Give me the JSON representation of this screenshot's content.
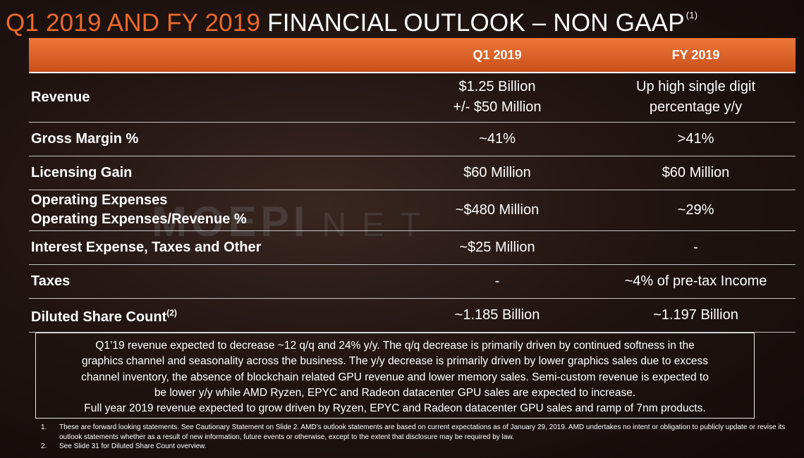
{
  "title": {
    "orange_part": "Q1 2019 AND FY 2019",
    "white_part": "FINANCIAL OUTLOOK – NON GAAP",
    "footnote_ref": "(1)"
  },
  "watermark": {
    "bold": "MOEPI",
    "light": "NET"
  },
  "table": {
    "headers": [
      "",
      "Q1 2019",
      "FY 2019"
    ],
    "rows": [
      {
        "label": [
          "Revenue"
        ],
        "q1": [
          "$1.25 Billion",
          "+/- $50 Million"
        ],
        "fy": [
          "Up high single digit",
          "percentage y/y"
        ]
      },
      {
        "label": [
          "Gross Margin %"
        ],
        "q1": [
          "~41%"
        ],
        "fy": [
          ">41%"
        ]
      },
      {
        "label": [
          "Licensing Gain"
        ],
        "q1": [
          "$60 Million"
        ],
        "fy": [
          "$60 Million"
        ]
      },
      {
        "label": [
          "Operating Expenses",
          "Operating Expenses/Revenue %"
        ],
        "q1": [
          "~$480 Million"
        ],
        "fy": [
          "~29%"
        ]
      },
      {
        "label": [
          "Interest Expense, Taxes and Other"
        ],
        "q1": [
          "~$25 Million"
        ],
        "fy": [
          "-"
        ]
      },
      {
        "label": [
          "Taxes"
        ],
        "q1": [
          "-"
        ],
        "fy": [
          "~4% of pre-tax Income"
        ]
      },
      {
        "label": [
          "Diluted Share Count"
        ],
        "label_sup": "(2)",
        "q1": [
          "~1.185 Billion"
        ],
        "fy": [
          "~1.197 Billion"
        ]
      }
    ]
  },
  "note_lines": [
    "Q1’19 revenue expected to decrease ~12 q/q and 24% y/y.  The q/q decrease is primarily driven by continued softness in the",
    "graphics channel and seasonality across the business.  The y/y decrease is primarily driven by lower graphics sales due to excess",
    "channel inventory, the absence of blockchain related GPU revenue and lower memory sales.  Semi-custom revenue is expected to",
    "be lower y/y while AMD Ryzen, EPYC and Radeon datacenter GPU sales are expected to increase.",
    "Full year 2019 revenue expected to grow driven by Ryzen, EPYC and Radeon datacenter GPU sales and ramp of 7nm products."
  ],
  "footnotes": [
    {
      "num": "1.",
      "text": "These are forward looking statements.  See Cautionary Statement on Slide 2. AMD’s outlook statements are based on current expectations as of January 29, 2019.  AMD undertakes no intent or obligation to publicly update or revise its outlook statements whether as a result of new information, future events or otherwise, except to the extent that disclosure may be required by law."
    },
    {
      "num": "2.",
      "text": "See Slide 31 for Diluted Share Count overview."
    }
  ],
  "colors": {
    "accent_orange": "#ec6a2a",
    "header_fill": "#e06228",
    "background": "#1c1210"
  }
}
